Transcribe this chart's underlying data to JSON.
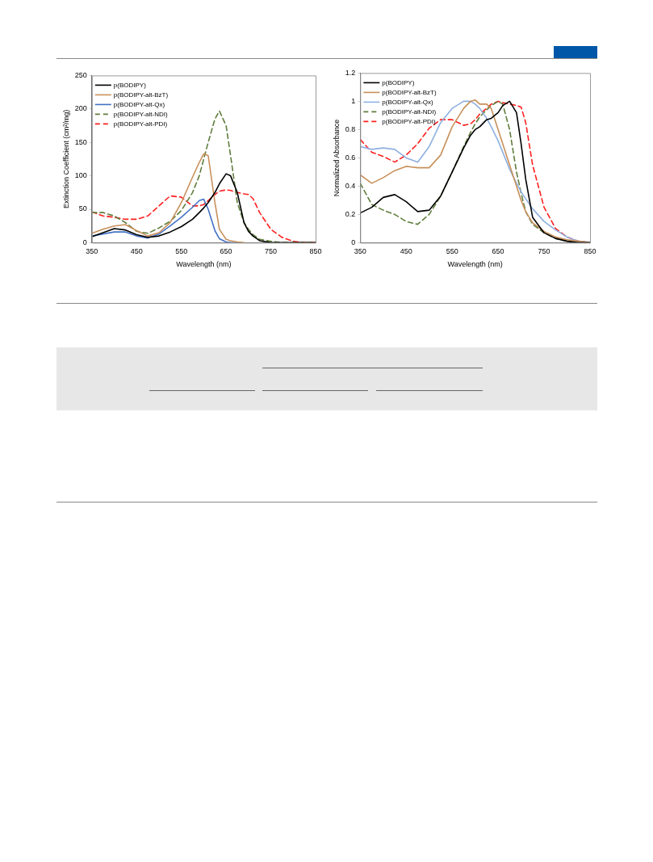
{
  "chart_data": [
    {
      "type": "line",
      "xlabel": "Wavelength (nm)",
      "ylabel": "Extinction Coefficient (cm²/mg)",
      "xlim": [
        350,
        850
      ],
      "xticks": [
        350,
        450,
        550,
        650,
        750,
        850
      ],
      "ylim": [
        0,
        250
      ],
      "yticks": [
        0,
        50,
        100,
        150,
        200,
        250
      ],
      "grid": false,
      "legend": "top left",
      "marker": "none",
      "x": [
        350,
        375,
        400,
        425,
        450,
        475,
        500,
        525,
        550,
        575,
        590,
        600,
        610,
        625,
        635,
        650,
        660,
        675,
        690,
        700,
        710,
        725,
        750,
        775,
        800,
        825,
        850
      ],
      "series": [
        {
          "name": "p(BODIPY)",
          "color": "#000000",
          "line_style": "solid",
          "values": [
            9,
            15,
            21,
            19,
            12,
            8,
            10,
            16,
            24,
            35,
            45,
            52,
            60,
            75,
            88,
            103,
            100,
            75,
            30,
            17,
            10,
            3,
            0,
            0,
            0,
            0,
            0
          ]
        },
        {
          "name": "p(BODIPY-alt-BzT)",
          "color": "#c8905a",
          "line_style": "solid",
          "values": [
            14,
            20,
            25,
            27,
            18,
            10,
            15,
            30,
            60,
            98,
            120,
            133,
            130,
            60,
            20,
            5,
            3,
            1,
            0,
            null,
            null,
            null,
            null,
            null,
            null,
            null,
            null
          ]
        },
        {
          "name": "p(BODIPY-alt-Qx)",
          "color": "#4472c4",
          "line_style": "solid",
          "values": [
            10,
            13,
            16,
            16,
            10,
            7,
            13,
            25,
            38,
            53,
            63,
            65,
            50,
            18,
            6,
            1,
            0,
            0,
            null,
            null,
            null,
            null,
            null,
            null,
            null,
            null,
            null
          ]
        },
        {
          "name": "p(BODIPY-alt-NDI)",
          "color": "#5f7d3c",
          "line_style": "dashed",
          "values": [
            45,
            45,
            40,
            30,
            17,
            14,
            22,
            32,
            48,
            75,
            100,
            125,
            150,
            185,
            197,
            175,
            130,
            60,
            30,
            20,
            12,
            5,
            2,
            0,
            0,
            0,
            0
          ]
        },
        {
          "name": "p(BODIPY-alt-PDI)",
          "color": "#ff2020",
          "line_style": "dashed",
          "values": [
            46,
            40,
            38,
            35,
            35,
            40,
            55,
            70,
            68,
            55,
            55,
            57,
            63,
            72,
            77,
            79,
            78,
            75,
            73,
            72,
            66,
            45,
            20,
            8,
            2,
            0,
            0
          ]
        }
      ]
    },
    {
      "type": "line",
      "xlabel": "Wavelength (nm)",
      "ylabel": "Normalized Absorbance",
      "xlim": [
        350,
        850
      ],
      "xticks": [
        350,
        450,
        550,
        650,
        750,
        850
      ],
      "ylim": [
        0,
        1.2
      ],
      "yticks": [
        0,
        0.2,
        0.4,
        0.6,
        0.8,
        1,
        1.2
      ],
      "grid": false,
      "legend": "top left",
      "marker": "none",
      "x": [
        350,
        375,
        400,
        425,
        450,
        475,
        500,
        525,
        550,
        575,
        590,
        600,
        610,
        625,
        635,
        650,
        660,
        675,
        690,
        700,
        710,
        725,
        750,
        775,
        800,
        825,
        850
      ],
      "series": [
        {
          "name": "p(BODIPY)",
          "color": "#000000",
          "line_style": "solid",
          "values": [
            0.21,
            0.25,
            0.32,
            0.34,
            0.29,
            0.22,
            0.23,
            0.33,
            0.5,
            0.67,
            0.76,
            0.8,
            0.82,
            0.87,
            0.88,
            0.92,
            0.97,
            1,
            0.92,
            0.7,
            0.45,
            0.18,
            0.07,
            0.03,
            0.01,
            0,
            0
          ]
        },
        {
          "name": "p(BODIPY-alt-BzT)",
          "color": "#c8905a",
          "line_style": "solid",
          "values": [
            0.48,
            0.42,
            0.46,
            0.51,
            0.54,
            0.53,
            0.53,
            0.62,
            0.82,
            0.95,
            1,
            1.01,
            0.98,
            0.98,
            0.95,
            0.8,
            0.7,
            0.55,
            0.4,
            0.3,
            0.22,
            0.14,
            0.08,
            0.04,
            0.02,
            0.01,
            0
          ]
        },
        {
          "name": "p(BODIPY-alt-Qx)",
          "color": "#8fb0e0",
          "line_style": "solid",
          "values": [
            0.68,
            0.66,
            0.67,
            0.66,
            0.6,
            0.57,
            0.68,
            0.85,
            0.95,
            1,
            1,
            0.98,
            0.95,
            0.88,
            0.82,
            0.72,
            0.64,
            0.52,
            0.42,
            0.36,
            0.31,
            0.24,
            0.15,
            0.09,
            0.04,
            0.01,
            0
          ]
        },
        {
          "name": "p(BODIPY-alt-NDI)",
          "color": "#5f7d3c",
          "line_style": "dashed",
          "values": [
            0.42,
            0.27,
            0.23,
            0.2,
            0.15,
            0.13,
            0.2,
            0.33,
            0.5,
            0.68,
            0.78,
            0.84,
            0.89,
            0.94,
            0.97,
            1,
            0.98,
            0.8,
            0.5,
            0.35,
            0.22,
            0.13,
            0.07,
            0.03,
            0.01,
            0,
            0
          ]
        },
        {
          "name": "p(BODIPY-alt-PDI)",
          "color": "#ff2020",
          "line_style": "dashed",
          "values": [
            0.73,
            0.64,
            0.61,
            0.57,
            0.62,
            0.7,
            0.81,
            0.87,
            0.87,
            0.83,
            0.84,
            0.87,
            0.91,
            0.95,
            0.98,
            1,
            0.99,
            0.98,
            0.97,
            0.96,
            0.85,
            0.55,
            0.25,
            0.1,
            0.04,
            0.01,
            0
          ]
        }
      ]
    }
  ]
}
